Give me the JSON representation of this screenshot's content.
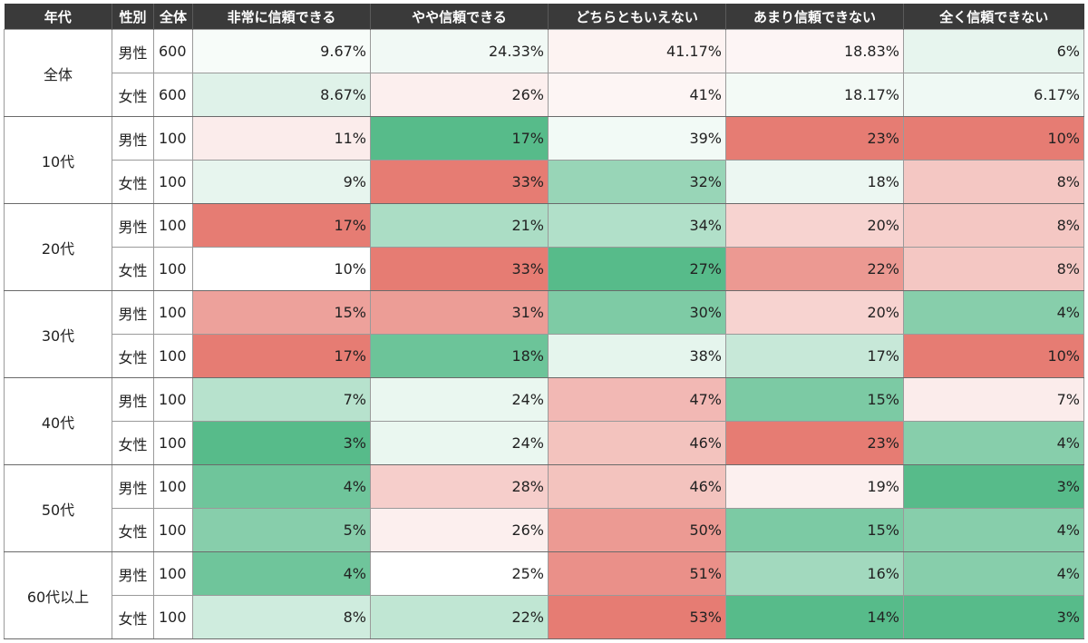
{
  "table": {
    "headers": [
      "年代",
      "性別",
      "全体",
      "非常に信頼できる",
      "やや信頼できる",
      "どちらともいえない",
      "あまり信頼できない",
      "全く信頼できない"
    ],
    "rows": [
      {
        "age": "全体",
        "sex": "男性",
        "total": "600",
        "cells": [
          "9.67%",
          "24.33%",
          "41.17%",
          "18.83%",
          "6%"
        ]
      },
      {
        "age": "全体",
        "sex": "女性",
        "total": "600",
        "cells": [
          "8.67%",
          "26%",
          "41%",
          "18.17%",
          "6.17%"
        ]
      },
      {
        "age": "10代",
        "sex": "男性",
        "total": "100",
        "cells": [
          "11%",
          "17%",
          "39%",
          "23%",
          "10%"
        ]
      },
      {
        "age": "10代",
        "sex": "女性",
        "total": "100",
        "cells": [
          "9%",
          "33%",
          "32%",
          "18%",
          "8%"
        ]
      },
      {
        "age": "20代",
        "sex": "男性",
        "total": "100",
        "cells": [
          "17%",
          "21%",
          "34%",
          "20%",
          "8%"
        ]
      },
      {
        "age": "20代",
        "sex": "女性",
        "total": "100",
        "cells": [
          "10%",
          "33%",
          "27%",
          "22%",
          "8%"
        ]
      },
      {
        "age": "30代",
        "sex": "男性",
        "total": "100",
        "cells": [
          "15%",
          "31%",
          "30%",
          "20%",
          "4%"
        ]
      },
      {
        "age": "30代",
        "sex": "女性",
        "total": "100",
        "cells": [
          "17%",
          "18%",
          "38%",
          "17%",
          "10%"
        ]
      },
      {
        "age": "40代",
        "sex": "男性",
        "total": "100",
        "cells": [
          "7%",
          "24%",
          "47%",
          "15%",
          "7%"
        ]
      },
      {
        "age": "40代",
        "sex": "女性",
        "total": "100",
        "cells": [
          "3%",
          "24%",
          "46%",
          "23%",
          "4%"
        ]
      },
      {
        "age": "50代",
        "sex": "男性",
        "total": "100",
        "cells": [
          "4%",
          "28%",
          "46%",
          "19%",
          "3%"
        ]
      },
      {
        "age": "50代",
        "sex": "女性",
        "total": "100",
        "cells": [
          "5%",
          "26%",
          "50%",
          "15%",
          "4%"
        ]
      },
      {
        "age": "60代以上",
        "sex": "男性",
        "total": "100",
        "cells": [
          "4%",
          "25%",
          "51%",
          "16%",
          "4%"
        ]
      },
      {
        "age": "60代以上",
        "sex": "女性",
        "total": "100",
        "cells": [
          "8%",
          "22%",
          "53%",
          "14%",
          "3%"
        ]
      }
    ]
  },
  "chart_data": {
    "type": "table",
    "columns": [
      "年代",
      "性別",
      "全体",
      "非常に信頼できる",
      "やや信頼できる",
      "どちらともいえない",
      "あまり信頼できない",
      "全く信頼できない"
    ],
    "rows": [
      [
        "全体",
        "男性",
        600,
        9.67,
        24.33,
        41.17,
        18.83,
        6
      ],
      [
        "全体",
        "女性",
        600,
        8.67,
        26,
        41,
        18.17,
        6.17
      ],
      [
        "10代",
        "男性",
        100,
        11,
        17,
        39,
        23,
        10
      ],
      [
        "10代",
        "女性",
        100,
        9,
        33,
        32,
        18,
        8
      ],
      [
        "20代",
        "男性",
        100,
        17,
        21,
        34,
        20,
        8
      ],
      [
        "20代",
        "女性",
        100,
        10,
        33,
        27,
        22,
        8
      ],
      [
        "30代",
        "男性",
        100,
        15,
        31,
        30,
        20,
        4
      ],
      [
        "30代",
        "女性",
        100,
        17,
        18,
        38,
        17,
        10
      ],
      [
        "40代",
        "男性",
        100,
        7,
        24,
        47,
        15,
        7
      ],
      [
        "40代",
        "女性",
        100,
        3,
        24,
        46,
        23,
        4
      ],
      [
        "50代",
        "男性",
        100,
        4,
        28,
        46,
        19,
        3
      ],
      [
        "50代",
        "女性",
        100,
        5,
        26,
        50,
        15,
        4
      ],
      [
        "60代以上",
        "男性",
        100,
        4,
        25,
        51,
        16,
        4
      ],
      [
        "60代以上",
        "女性",
        100,
        8,
        22,
        53,
        14,
        3
      ]
    ],
    "color_scale": {
      "low": "#57bb8a",
      "mid": "#ffffff",
      "high": "#e67c73"
    }
  }
}
